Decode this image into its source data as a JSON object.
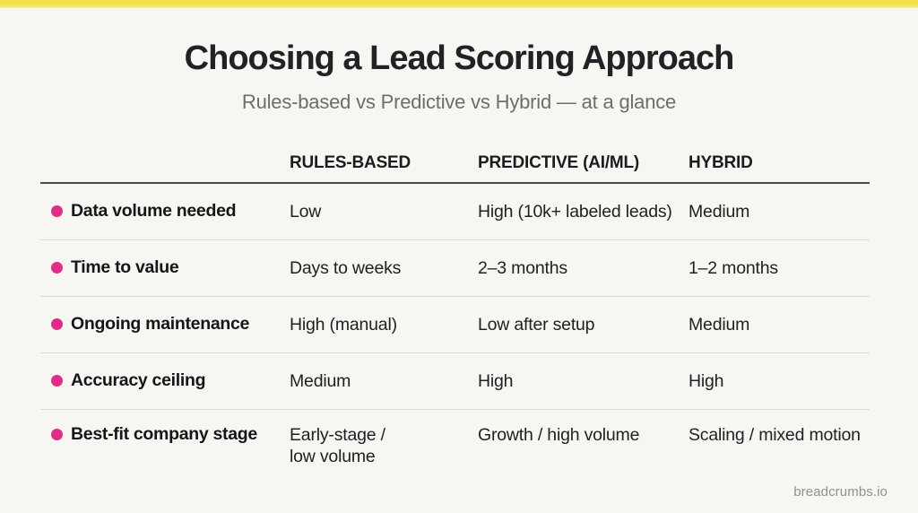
{
  "page": {
    "accent_bar_color": "#efe03c",
    "background_color": "#f7f6f2",
    "bullet_color": "#e02d88"
  },
  "header": {
    "title": "Choosing a Lead Scoring Approach",
    "subtitle": "Rules-based vs Predictive vs Hybrid — at a glance"
  },
  "table": {
    "columns": [
      "RULES-BASED",
      "PREDICTIVE (AI/ML)",
      "HYBRID"
    ],
    "rows": [
      {
        "label": "Data volume needed",
        "values": [
          "Low",
          "High (10k+ labeled leads)",
          "Medium"
        ]
      },
      {
        "label": "Time to value",
        "values": [
          "Days to weeks",
          "2–3 months",
          "1–2 months"
        ]
      },
      {
        "label": "Ongoing maintenance",
        "values": [
          "High (manual)",
          "Low after setup",
          "Medium"
        ]
      },
      {
        "label": "Accuracy ceiling",
        "values": [
          "Medium",
          "High",
          "High"
        ]
      },
      {
        "label": "Best-fit company stage",
        "values": [
          "Early-stage /\nlow volume",
          "Growth / high volume",
          "Scaling / mixed motion"
        ]
      }
    ]
  },
  "footer": {
    "brand": "breadcrumbs.io"
  }
}
